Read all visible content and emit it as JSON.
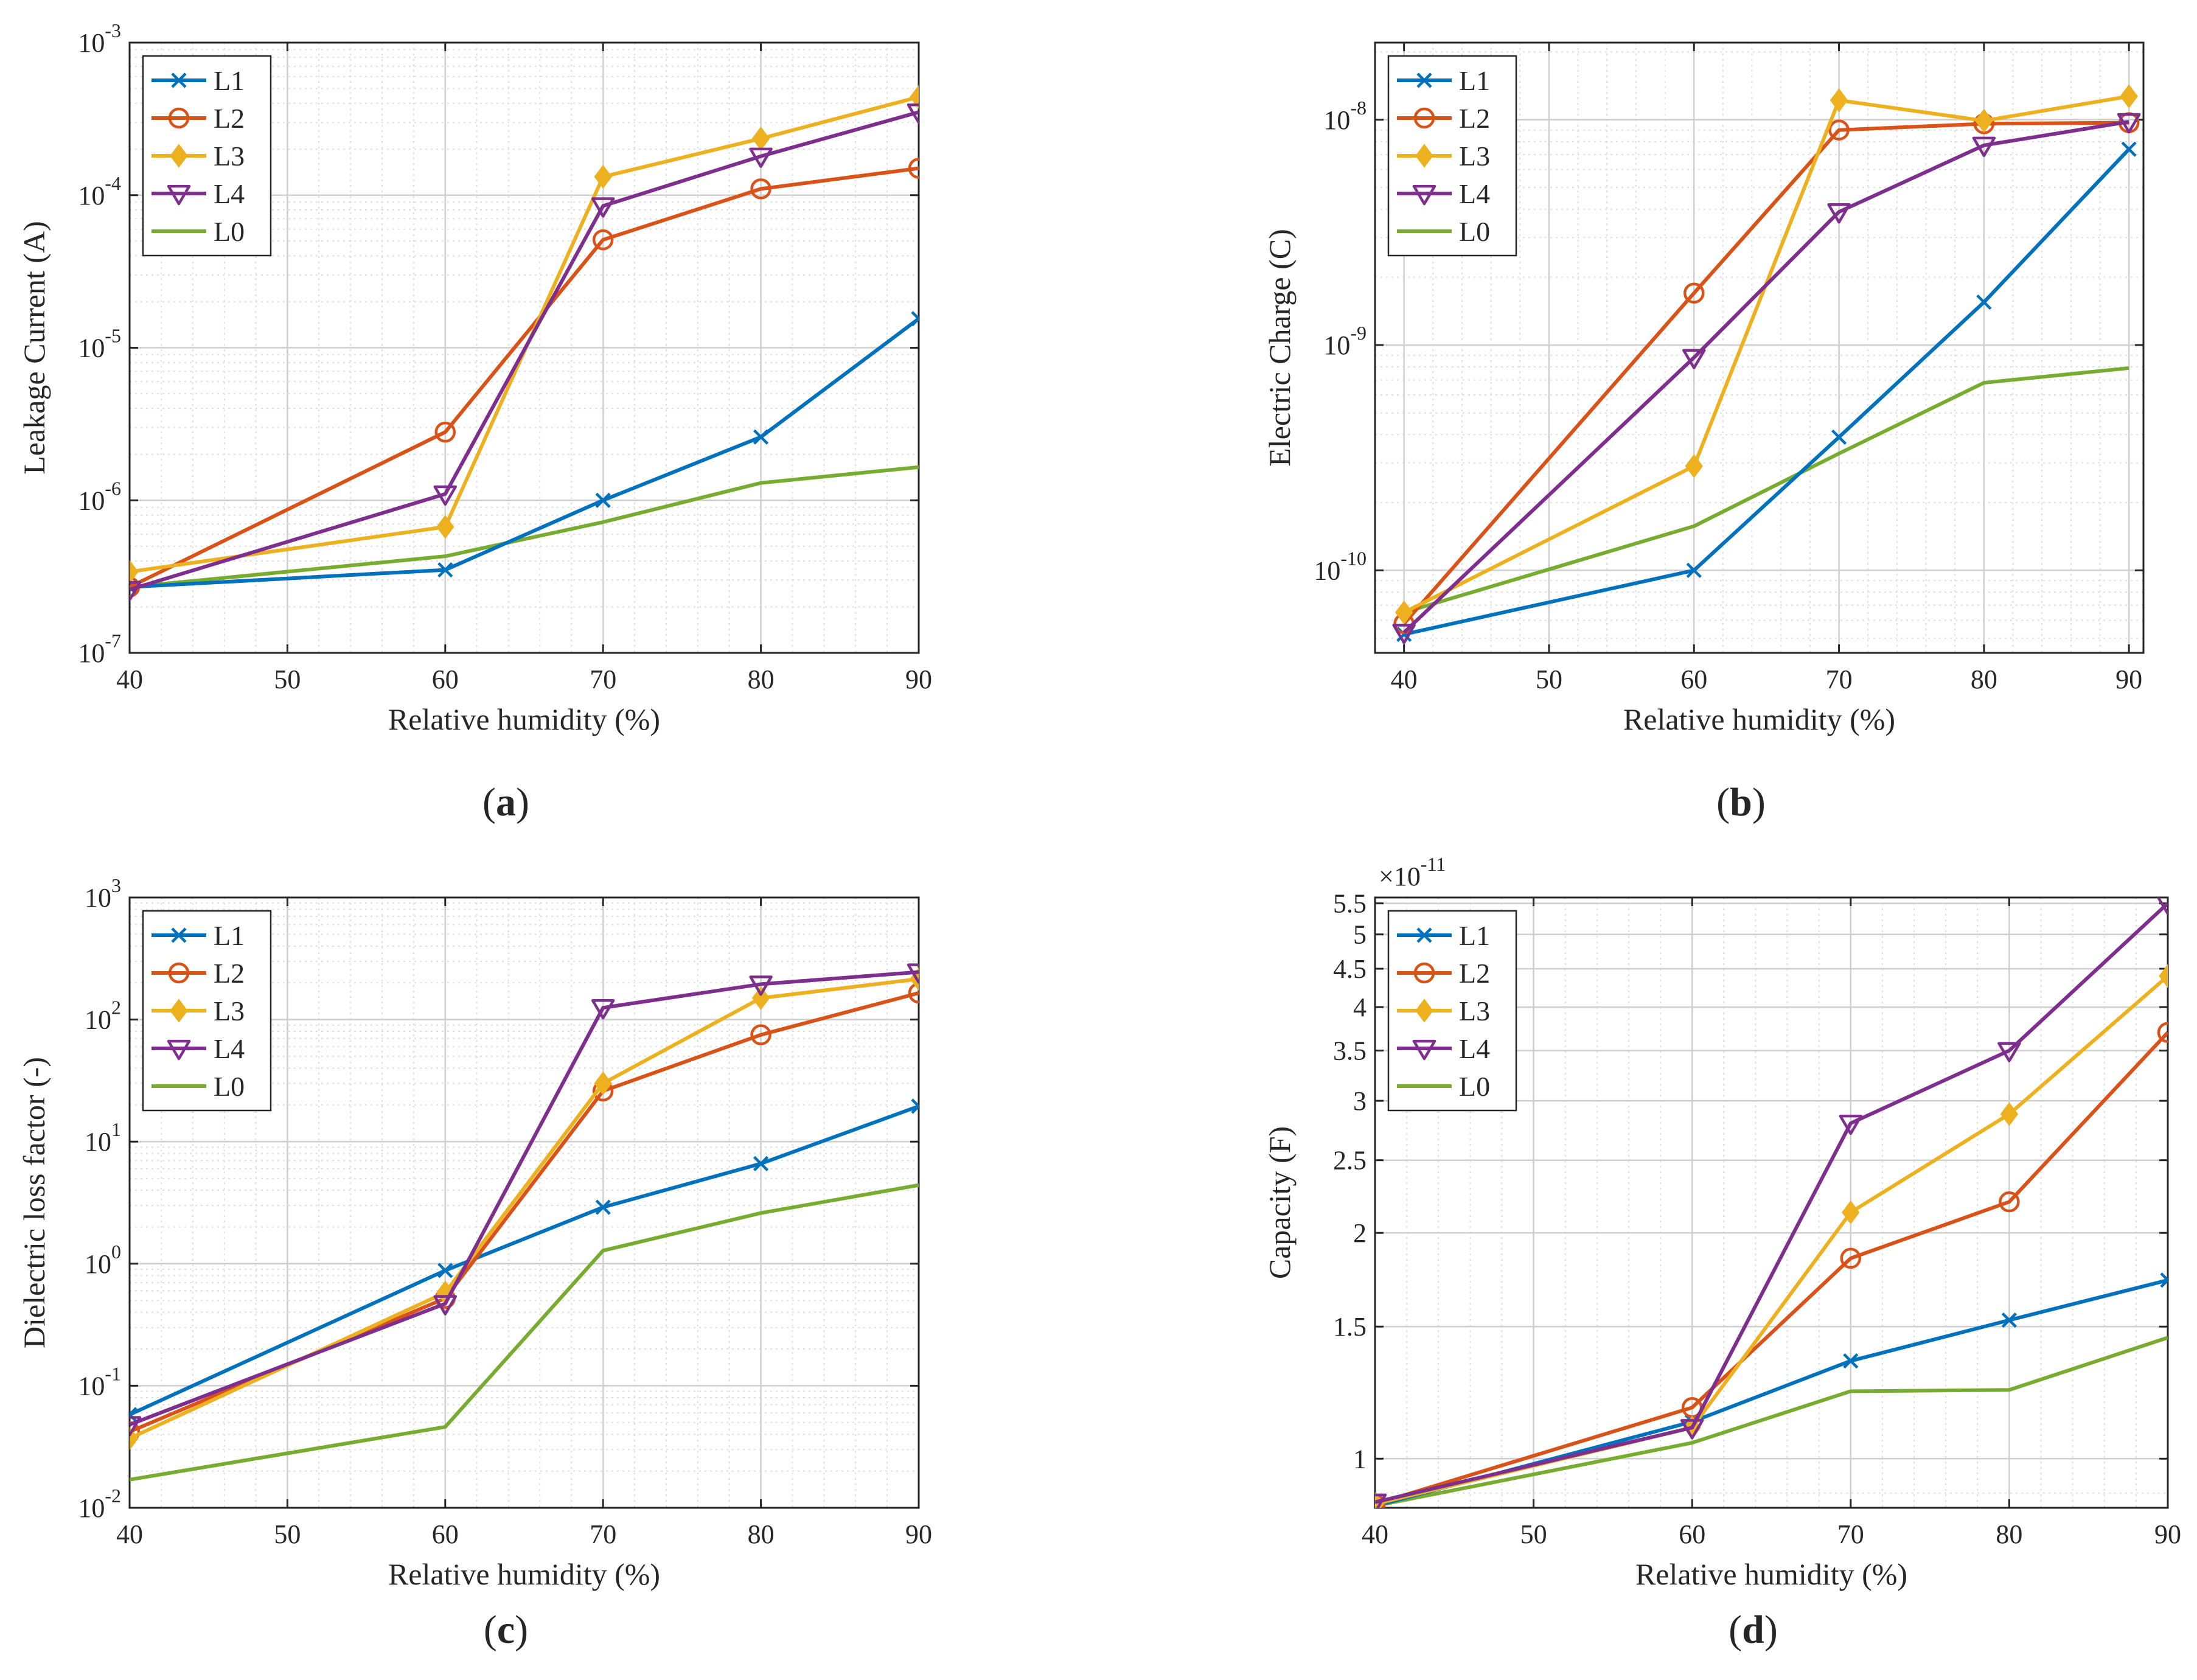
{
  "figure": {
    "background": "#ffffff"
  },
  "colors": {
    "L1": "#0072BD",
    "L2": "#D95319",
    "L3": "#EDB120",
    "L4": "#7E2F8E",
    "L0": "#77AC30"
  },
  "chart_data": [
    {
      "id": "a",
      "type": "line",
      "caption": "a",
      "xlabel": "Relative humidity (%)",
      "ylabel": "Leakage Current (A)",
      "yscale": "log",
      "xlim": [
        40,
        90
      ],
      "ylim": [
        1e-07,
        0.001
      ],
      "xticks": [
        40,
        50,
        60,
        70,
        80,
        90
      ],
      "yticks": [
        {
          "value": 1e-07,
          "base": "10",
          "exp": "-7"
        },
        {
          "value": 1e-06,
          "base": "10",
          "exp": "-6"
        },
        {
          "value": 1e-05,
          "base": "10",
          "exp": "-5"
        },
        {
          "value": 0.0001,
          "base": "10",
          "exp": "-4"
        },
        {
          "value": 0.001,
          "base": "10",
          "exp": "-3"
        }
      ],
      "legend": "top-left",
      "grid": true,
      "x": [
        40,
        60,
        70,
        80,
        90
      ],
      "series": [
        {
          "name": "L1",
          "marker": "x",
          "values": [
            2.7e-07,
            3.5e-07,
            1e-06,
            2.6e-06,
            1.55e-05
          ]
        },
        {
          "name": "L2",
          "marker": "circle",
          "values": [
            2.7e-07,
            2.8e-06,
            5.1e-05,
            0.00011,
            0.00015
          ]
        },
        {
          "name": "L3",
          "marker": "diamond",
          "values": [
            3.4e-07,
            6.7e-07,
            0.000132,
            0.000235,
            0.00044
          ]
        },
        {
          "name": "L4",
          "marker": "triangle-down",
          "values": [
            2.6e-07,
            1.1e-06,
            8.5e-05,
            0.00018,
            0.00035
          ]
        },
        {
          "name": "L0",
          "marker": "none",
          "values": [
            2.7e-07,
            4.3e-07,
            7.2e-07,
            1.3e-06,
            1.65e-06
          ]
        }
      ]
    },
    {
      "id": "b",
      "type": "line",
      "caption": "b",
      "xlabel": "Relative humidity (%)",
      "ylabel": "Electric Charge (C)",
      "yscale": "log",
      "xlim": [
        38,
        91
      ],
      "ylim": [
        4.3e-11,
        2.2e-08
      ],
      "xticks": [
        40,
        50,
        60,
        70,
        80,
        90
      ],
      "yticks": [
        {
          "value": 1e-10,
          "base": "10",
          "exp": "-10"
        },
        {
          "value": 1e-09,
          "base": "10",
          "exp": "-9"
        },
        {
          "value": 1e-08,
          "base": "10",
          "exp": "-8"
        }
      ],
      "legend": "top-left",
      "grid": true,
      "x": [
        40,
        60,
        70,
        80,
        90
      ],
      "series": [
        {
          "name": "L1",
          "marker": "x",
          "values": [
            5.2e-11,
            1e-10,
            3.9e-10,
            1.55e-09,
            7.4e-09
          ]
        },
        {
          "name": "L2",
          "marker": "circle",
          "values": [
            5.8e-11,
            1.7e-09,
            9e-09,
            9.6e-09,
            9.7e-09
          ]
        },
        {
          "name": "L3",
          "marker": "diamond",
          "values": [
            6.5e-11,
            2.9e-10,
            1.22e-08,
            9.9e-09,
            1.27e-08
          ]
        },
        {
          "name": "L4",
          "marker": "triangle-down",
          "values": [
            5.3e-11,
            8.8e-10,
            3.9e-09,
            7.7e-09,
            9.8e-09
          ]
        },
        {
          "name": "L0",
          "marker": "none",
          "values": [
            6.5e-11,
            1.57e-10,
            3.3e-10,
            6.8e-10,
            7.9e-10
          ]
        }
      ]
    },
    {
      "id": "c",
      "type": "line",
      "caption": "c",
      "xlabel": "Relative humidity (%)",
      "ylabel": "Dielectric loss factor (-)",
      "yscale": "log",
      "xlim": [
        40,
        90
      ],
      "ylim": [
        0.01,
        1000
      ],
      "xticks": [
        40,
        50,
        60,
        70,
        80,
        90
      ],
      "yticks": [
        {
          "value": 0.01,
          "base": "10",
          "exp": "-2"
        },
        {
          "value": 0.1,
          "base": "10",
          "exp": "-1"
        },
        {
          "value": 1,
          "base": "10",
          "exp": "0"
        },
        {
          "value": 10,
          "base": "10",
          "exp": "1"
        },
        {
          "value": 100,
          "base": "10",
          "exp": "2"
        },
        {
          "value": 1000,
          "base": "10",
          "exp": "3"
        }
      ],
      "legend": "top-left",
      "grid": true,
      "x": [
        40,
        60,
        70,
        80,
        90
      ],
      "series": [
        {
          "name": "L1",
          "marker": "x",
          "values": [
            0.058,
            0.88,
            2.9,
            6.6,
            19.5
          ]
        },
        {
          "name": "L2",
          "marker": "circle",
          "values": [
            0.042,
            0.52,
            26,
            75,
            165
          ]
        },
        {
          "name": "L3",
          "marker": "diamond",
          "values": [
            0.037,
            0.58,
            30,
            150,
            215
          ]
        },
        {
          "name": "L4",
          "marker": "triangle-down",
          "values": [
            0.048,
            0.47,
            125,
            195,
            245
          ]
        },
        {
          "name": "L0",
          "marker": "none",
          "values": [
            0.017,
            0.046,
            1.28,
            2.6,
            4.4
          ]
        }
      ]
    },
    {
      "id": "d",
      "type": "line",
      "caption": "d",
      "xlabel": "Relative humidity (%)",
      "ylabel": "Capacity (F)",
      "yscale": "log",
      "multiplier": {
        "base": "×10",
        "exp": "-11"
      },
      "xlim": [
        40,
        90
      ],
      "ylim": [
        0.86,
        5.6
      ],
      "xticks": [
        40,
        50,
        60,
        70,
        80,
        90
      ],
      "yticks": [
        {
          "value": 1,
          "label": "1"
        },
        {
          "value": 1.5,
          "label": "1.5"
        },
        {
          "value": 2,
          "label": "2"
        },
        {
          "value": 2.5,
          "label": "2.5"
        },
        {
          "value": 3,
          "label": "3"
        },
        {
          "value": 3.5,
          "label": "3.5"
        },
        {
          "value": 4,
          "label": "4"
        },
        {
          "value": 4.5,
          "label": "4.5"
        },
        {
          "value": 5,
          "label": "5"
        },
        {
          "value": 5.5,
          "label": "5.5"
        }
      ],
      "legend": "top-left",
      "grid": true,
      "x": [
        40,
        60,
        70,
        80,
        90
      ],
      "series": [
        {
          "name": "L1",
          "marker": "x",
          "values": [
            0.865,
            1.12,
            1.35,
            1.53,
            1.73
          ]
        },
        {
          "name": "L2",
          "marker": "circle",
          "values": [
            0.87,
            1.17,
            1.85,
            2.2,
            3.7
          ]
        },
        {
          "name": "L3",
          "marker": "diamond",
          "values": [
            0.87,
            1.1,
            2.13,
            2.88,
            4.4
          ]
        },
        {
          "name": "L4",
          "marker": "triangle-down",
          "values": [
            0.875,
            1.1,
            2.8,
            3.5,
            5.5
          ]
        },
        {
          "name": "L0",
          "marker": "none",
          "values": [
            0.865,
            1.05,
            1.23,
            1.235,
            1.45
          ]
        }
      ]
    }
  ]
}
